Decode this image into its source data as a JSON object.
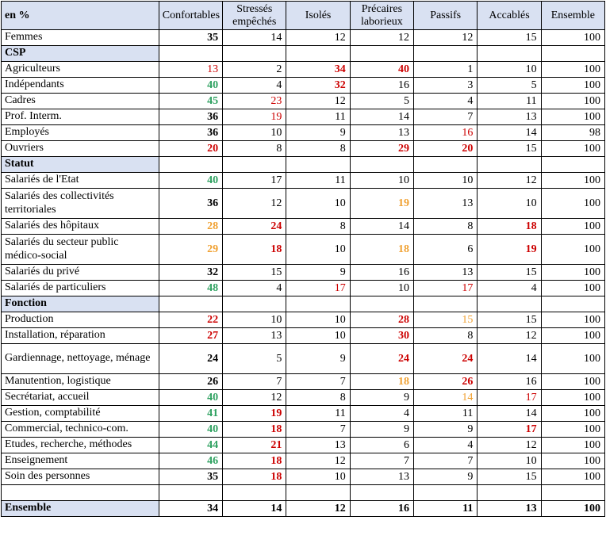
{
  "colors": {
    "header_bg": "#d9e1f2",
    "red": "#cc0000",
    "green": "#2ea160",
    "orange": "#f0a030",
    "black": "#000000"
  },
  "chart_data": {
    "type": "table",
    "corner_label": "en %",
    "columns": [
      "Confortables",
      "Stressés empêchés",
      "Isolés",
      "Précaires laborieux",
      "Passifs",
      "Accablés",
      "Ensemble"
    ],
    "rows": [
      {
        "type": "data",
        "label": "Femmes",
        "cells": [
          {
            "v": 35,
            "b": 1
          },
          {
            "v": 14
          },
          {
            "v": 12
          },
          {
            "v": 12
          },
          {
            "v": 12
          },
          {
            "v": 15
          },
          {
            "v": 100
          }
        ]
      },
      {
        "type": "section",
        "label": "CSP"
      },
      {
        "type": "data",
        "label": "Agriculteurs",
        "cells": [
          {
            "v": 13,
            "c": "red"
          },
          {
            "v": 2
          },
          {
            "v": 34,
            "c": "red",
            "b": 1
          },
          {
            "v": 40,
            "c": "red",
            "b": 1
          },
          {
            "v": 1
          },
          {
            "v": 10
          },
          {
            "v": 100
          }
        ]
      },
      {
        "type": "data",
        "label": "Indépendants",
        "cells": [
          {
            "v": 40,
            "c": "green",
            "b": 1
          },
          {
            "v": 4
          },
          {
            "v": 32,
            "c": "red",
            "b": 1
          },
          {
            "v": 16
          },
          {
            "v": 3
          },
          {
            "v": 5
          },
          {
            "v": 100
          }
        ]
      },
      {
        "type": "data",
        "label": "Cadres",
        "cells": [
          {
            "v": 45,
            "c": "green",
            "b": 1
          },
          {
            "v": 23,
            "c": "red"
          },
          {
            "v": 12
          },
          {
            "v": 5
          },
          {
            "v": 4
          },
          {
            "v": 11
          },
          {
            "v": 100
          }
        ]
      },
      {
        "type": "data",
        "label": "Prof. Interm.",
        "cells": [
          {
            "v": 36,
            "b": 1
          },
          {
            "v": 19,
            "c": "red"
          },
          {
            "v": 11
          },
          {
            "v": 14
          },
          {
            "v": 7
          },
          {
            "v": 13
          },
          {
            "v": 100
          }
        ]
      },
      {
        "type": "data",
        "label": "Employés",
        "cells": [
          {
            "v": 36,
            "b": 1
          },
          {
            "v": 10
          },
          {
            "v": 9
          },
          {
            "v": 13
          },
          {
            "v": 16,
            "c": "red"
          },
          {
            "v": 14
          },
          {
            "v": 98
          }
        ]
      },
      {
        "type": "data",
        "label": "Ouvriers",
        "cells": [
          {
            "v": 20,
            "c": "red",
            "b": 1
          },
          {
            "v": 8
          },
          {
            "v": 8
          },
          {
            "v": 29,
            "c": "red",
            "b": 1
          },
          {
            "v": 20,
            "c": "red",
            "b": 1
          },
          {
            "v": 15
          },
          {
            "v": 100
          }
        ]
      },
      {
        "type": "section",
        "label": "Statut"
      },
      {
        "type": "data",
        "label": "Salariés de l'Etat",
        "cells": [
          {
            "v": 40,
            "c": "green",
            "b": 1
          },
          {
            "v": 17
          },
          {
            "v": 11
          },
          {
            "v": 10
          },
          {
            "v": 10
          },
          {
            "v": 12
          },
          {
            "v": 100
          }
        ]
      },
      {
        "type": "data",
        "label": "Salariés des collectivités territoriales",
        "tall": 1,
        "cells": [
          {
            "v": 36,
            "b": 1
          },
          {
            "v": 12
          },
          {
            "v": 10
          },
          {
            "v": 19,
            "c": "orange",
            "b": 1
          },
          {
            "v": 13
          },
          {
            "v": 10
          },
          {
            "v": 100
          }
        ]
      },
      {
        "type": "data",
        "label": "Salariés des hôpitaux",
        "cells": [
          {
            "v": 28,
            "c": "orange",
            "b": 1
          },
          {
            "v": 24,
            "c": "red",
            "b": 1
          },
          {
            "v": 8
          },
          {
            "v": 14
          },
          {
            "v": 8
          },
          {
            "v": 18,
            "c": "red",
            "b": 1
          },
          {
            "v": 100
          }
        ]
      },
      {
        "type": "data",
        "label": "Salariés du secteur public médico-social",
        "tall": 1,
        "cells": [
          {
            "v": 29,
            "c": "orange",
            "b": 1
          },
          {
            "v": 18,
            "c": "red",
            "b": 1
          },
          {
            "v": 10
          },
          {
            "v": 18,
            "c": "orange",
            "b": 1
          },
          {
            "v": 6
          },
          {
            "v": 19,
            "c": "red",
            "b": 1
          },
          {
            "v": 100
          }
        ]
      },
      {
        "type": "data",
        "label": "Salariés du privé",
        "cells": [
          {
            "v": 32,
            "b": 1
          },
          {
            "v": 15
          },
          {
            "v": 9
          },
          {
            "v": 16
          },
          {
            "v": 13
          },
          {
            "v": 15
          },
          {
            "v": 100
          }
        ]
      },
      {
        "type": "data",
        "label": "Salariés de particuliers",
        "cells": [
          {
            "v": 48,
            "c": "green",
            "b": 1
          },
          {
            "v": 4
          },
          {
            "v": 17,
            "c": "red"
          },
          {
            "v": 10
          },
          {
            "v": 17,
            "c": "red"
          },
          {
            "v": 4
          },
          {
            "v": 100
          }
        ]
      },
      {
        "type": "section",
        "label": "Fonction"
      },
      {
        "type": "data",
        "label": "Production",
        "cells": [
          {
            "v": 22,
            "c": "red",
            "b": 1
          },
          {
            "v": 10
          },
          {
            "v": 10
          },
          {
            "v": 28,
            "c": "red",
            "b": 1
          },
          {
            "v": 15,
            "c": "orange"
          },
          {
            "v": 15
          },
          {
            "v": 100
          }
        ]
      },
      {
        "type": "data",
        "label": "Installation, réparation",
        "cells": [
          {
            "v": 27,
            "c": "red",
            "b": 1
          },
          {
            "v": 13
          },
          {
            "v": 10
          },
          {
            "v": 30,
            "c": "red",
            "b": 1
          },
          {
            "v": 8
          },
          {
            "v": 12
          },
          {
            "v": 100
          }
        ]
      },
      {
        "type": "data",
        "label": "Gardiennage, nettoyage, ménage",
        "tall": 1,
        "cells": [
          {
            "v": 24,
            "b": 1
          },
          {
            "v": 5
          },
          {
            "v": 9
          },
          {
            "v": 24,
            "c": "red",
            "b": 1
          },
          {
            "v": 24,
            "c": "red",
            "b": 1
          },
          {
            "v": 14
          },
          {
            "v": 100
          }
        ]
      },
      {
        "type": "data",
        "label": "Manutention, logistique",
        "cells": [
          {
            "v": 26,
            "b": 1
          },
          {
            "v": 7
          },
          {
            "v": 7
          },
          {
            "v": 18,
            "c": "orange",
            "b": 1
          },
          {
            "v": 26,
            "c": "red",
            "b": 1
          },
          {
            "v": 16
          },
          {
            "v": 100
          }
        ]
      },
      {
        "type": "data",
        "label": "Secrétariat, accueil",
        "cells": [
          {
            "v": 40,
            "c": "green",
            "b": 1
          },
          {
            "v": 12
          },
          {
            "v": 8
          },
          {
            "v": 9
          },
          {
            "v": 14,
            "c": "orange"
          },
          {
            "v": 17,
            "c": "red"
          },
          {
            "v": 100
          }
        ]
      },
      {
        "type": "data",
        "label": "Gestion, comptabilité",
        "cells": [
          {
            "v": 41,
            "c": "green",
            "b": 1
          },
          {
            "v": 19,
            "c": "red",
            "b": 1
          },
          {
            "v": 11
          },
          {
            "v": 4
          },
          {
            "v": 11
          },
          {
            "v": 14
          },
          {
            "v": 100
          }
        ]
      },
      {
        "type": "data",
        "label": "Commercial, technico-com.",
        "cells": [
          {
            "v": 40,
            "c": "green",
            "b": 1
          },
          {
            "v": 18,
            "c": "red",
            "b": 1
          },
          {
            "v": 7
          },
          {
            "v": 9
          },
          {
            "v": 9
          },
          {
            "v": 17,
            "c": "red",
            "b": 1
          },
          {
            "v": 100
          }
        ]
      },
      {
        "type": "data",
        "label": "Etudes, recherche, méthodes",
        "cells": [
          {
            "v": 44,
            "c": "green",
            "b": 1
          },
          {
            "v": 21,
            "c": "red",
            "b": 1
          },
          {
            "v": 13
          },
          {
            "v": 6
          },
          {
            "v": 4
          },
          {
            "v": 12
          },
          {
            "v": 100
          }
        ]
      },
      {
        "type": "data",
        "label": "Enseignement",
        "cells": [
          {
            "v": 46,
            "c": "green",
            "b": 1
          },
          {
            "v": 18,
            "c": "red",
            "b": 1
          },
          {
            "v": 12
          },
          {
            "v": 7
          },
          {
            "v": 7
          },
          {
            "v": 10
          },
          {
            "v": 100
          }
        ]
      },
      {
        "type": "data",
        "label": "Soin des personnes",
        "cells": [
          {
            "v": 35,
            "b": 1
          },
          {
            "v": 18,
            "c": "red",
            "b": 1
          },
          {
            "v": 10
          },
          {
            "v": 13
          },
          {
            "v": 9
          },
          {
            "v": 15
          },
          {
            "v": 100
          }
        ]
      },
      {
        "type": "empty",
        "label": ""
      },
      {
        "type": "total",
        "label": "Ensemble",
        "cells": [
          {
            "v": 34,
            "b": 1
          },
          {
            "v": 14,
            "b": 1
          },
          {
            "v": 12,
            "b": 1
          },
          {
            "v": 16,
            "b": 1
          },
          {
            "v": 11,
            "b": 1
          },
          {
            "v": 13,
            "b": 1
          },
          {
            "v": 100,
            "b": 1
          }
        ]
      }
    ]
  }
}
